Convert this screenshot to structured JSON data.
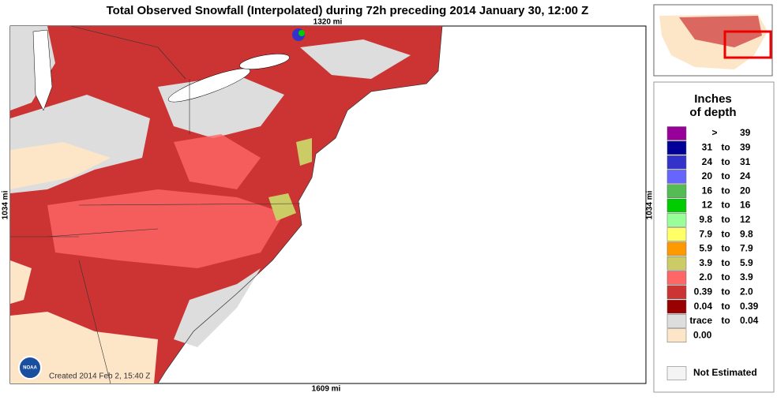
{
  "title": "Total Observed Snowfall (Interpolated) during 72h preceding 2014 January 30, 12:00 Z",
  "map": {
    "top_label": "1320 mi",
    "bottom_label": "1609 mi",
    "left_label": "1034 mi",
    "right_label": "1034 mi",
    "logo": "NOAA",
    "credit": "Created 2014 Feb 2, 15:40 Z"
  },
  "legend": {
    "title_lines": [
      "Inches",
      "of depth"
    ],
    "items": [
      {
        "color": "#990099",
        "sep": ">",
        "high": "39"
      },
      {
        "color": "#000099",
        "low": "31",
        "sep": "to",
        "high": "39"
      },
      {
        "color": "#3333cc",
        "low": "24",
        "sep": "to",
        "high": "31"
      },
      {
        "color": "#6666ff",
        "low": "20",
        "sep": "to",
        "high": "24"
      },
      {
        "color": "#55bb55",
        "low": "16",
        "sep": "to",
        "high": "20"
      },
      {
        "color": "#00cc00",
        "low": "12",
        "sep": "to",
        "high": "16"
      },
      {
        "color": "#99ff99",
        "low": "9.8",
        "sep": "to",
        "high": "12"
      },
      {
        "color": "#ffff66",
        "low": "7.9",
        "sep": "to",
        "high": "9.8"
      },
      {
        "color": "#ff9900",
        "low": "5.9",
        "sep": "to",
        "high": "7.9"
      },
      {
        "color": "#cccc66",
        "low": "3.9",
        "sep": "to",
        "high": "5.9"
      },
      {
        "color": "#ff6666",
        "low": "2.0",
        "sep": "to",
        "high": "3.9"
      },
      {
        "color": "#cc3333",
        "low": "0.39",
        "sep": "to",
        "high": "2.0"
      },
      {
        "color": "#990000",
        "low": "0.04",
        "sep": "to",
        "high": "0.39"
      },
      {
        "color": "#dddddd",
        "low": "trace",
        "sep": "to",
        "high": "0.04"
      },
      {
        "color": "#fde5c8",
        "low": "0.00"
      }
    ],
    "not_estimated": {
      "color": "#f4f4f4",
      "label": "Not Estimated"
    }
  }
}
